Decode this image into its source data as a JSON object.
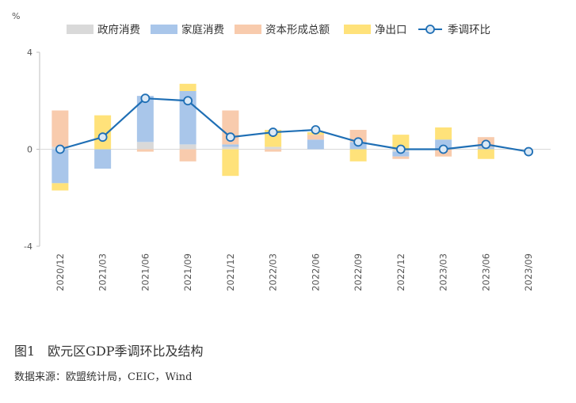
{
  "chart_data": {
    "type": "bar",
    "stacked": true,
    "unit": "%",
    "ylim": [
      -4,
      4
    ],
    "yticks": [
      4,
      0,
      -4
    ],
    "categories": [
      "2020/12",
      "2021/03",
      "2021/06",
      "2021/09",
      "2021/12",
      "2022/03",
      "2022/06",
      "2022/09",
      "2022/12",
      "2023/03",
      "2023/06",
      "2023/09"
    ],
    "series": [
      {
        "name": "政府消费",
        "type": "bar",
        "color": "#d9d9d9",
        "values": [
          0.1,
          0.0,
          0.3,
          0.2,
          0.1,
          0.1,
          0.0,
          0.0,
          -0.1,
          0.0,
          0.0,
          0.0
        ]
      },
      {
        "name": "家庭消费",
        "type": "bar",
        "color": "#a9c6ea",
        "values": [
          -1.4,
          -0.8,
          1.9,
          2.2,
          0.1,
          0.0,
          0.4,
          0.3,
          -0.2,
          0.4,
          0.1,
          0.0
        ]
      },
      {
        "name": "资本形成总额",
        "type": "bar",
        "color": "#f8cbad",
        "values": [
          1.5,
          0.0,
          -0.1,
          -0.5,
          1.4,
          -0.1,
          0.2,
          0.5,
          -0.1,
          -0.3,
          0.4,
          0.0
        ]
      },
      {
        "name": "净出口",
        "type": "bar",
        "color": "#ffe27a",
        "values": [
          -0.3,
          1.4,
          0.0,
          0.3,
          -1.1,
          0.7,
          0.1,
          -0.5,
          0.6,
          0.5,
          -0.4,
          0.0
        ]
      },
      {
        "name": "季调环比",
        "type": "line",
        "color": "#1f6fb5",
        "values": [
          0.0,
          0.5,
          2.1,
          2.0,
          0.5,
          0.7,
          0.8,
          0.3,
          0.0,
          0.0,
          0.2,
          -0.1
        ]
      }
    ],
    "legend_position": "top",
    "grid": false
  },
  "caption": "图1　欧元区GDP季调环比及结构",
  "source": "数据来源：欧盟统计局，CEIC，Wind"
}
